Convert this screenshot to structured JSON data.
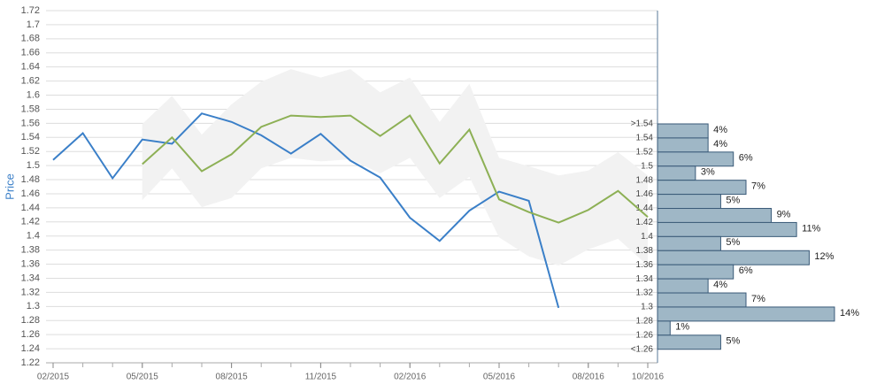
{
  "chart_data": {
    "type": "line",
    "y_label": "Price",
    "ylim": [
      1.22,
      1.72
    ],
    "yticks": [
      1.22,
      1.24,
      1.26,
      1.28,
      1.3,
      1.32,
      1.34,
      1.36,
      1.38,
      1.4,
      1.42,
      1.44,
      1.46,
      1.48,
      1.5,
      1.52,
      1.54,
      1.56,
      1.58,
      1.6,
      1.62,
      1.64,
      1.66,
      1.68,
      1.7,
      1.72
    ],
    "xticks": [
      "02/2015",
      "05/2015",
      "08/2015",
      "11/2015",
      "02/2016",
      "05/2016",
      "08/2016",
      "10/2016"
    ],
    "grid": true,
    "band": {
      "color": "#f2f2f2",
      "x": [
        "05/2015",
        "06/2015",
        "07/2015",
        "08/2015",
        "09/2015",
        "10/2015",
        "11/2015",
        "12/2015",
        "01/2016",
        "02/2016",
        "03/2016",
        "04/2016",
        "05/2016",
        "06/2016",
        "07/2016",
        "08/2016",
        "09/2016",
        "10/2016"
      ],
      "upper": [
        1.559,
        1.599,
        1.544,
        1.587,
        1.619,
        1.637,
        1.625,
        1.637,
        1.604,
        1.625,
        1.562,
        1.616,
        1.511,
        1.499,
        1.486,
        1.493,
        1.519,
        1.486
      ],
      "lower": [
        1.451,
        1.496,
        1.441,
        1.454,
        1.496,
        1.511,
        1.506,
        1.509,
        1.489,
        1.511,
        1.454,
        1.484,
        1.398,
        1.371,
        1.358,
        1.381,
        1.396,
        1.358
      ]
    },
    "series": [
      {
        "color": "#3a7fc8",
        "x": [
          "02/2015",
          "03/2015",
          "04/2015",
          "05/2015",
          "06/2015",
          "07/2015",
          "08/2015",
          "09/2015",
          "10/2015",
          "11/2015",
          "12/2015",
          "01/2016",
          "02/2016",
          "03/2016",
          "04/2016",
          "05/2016",
          "06/2016",
          "07/2016"
        ],
        "values": [
          1.508,
          1.546,
          1.482,
          1.537,
          1.531,
          1.574,
          1.562,
          1.543,
          1.517,
          1.545,
          1.507,
          1.483,
          1.426,
          1.393,
          1.436,
          1.463,
          1.45,
          1.298
        ]
      },
      {
        "color": "#8db055",
        "x": [
          "05/2015",
          "06/2015",
          "07/2015",
          "08/2015",
          "09/2015",
          "10/2015",
          "11/2015",
          "12/2015",
          "01/2016",
          "02/2016",
          "03/2016",
          "04/2016",
          "05/2016",
          "06/2016",
          "07/2016",
          "08/2016",
          "09/2016",
          "10/2016"
        ],
        "values": [
          1.502,
          1.54,
          1.492,
          1.516,
          1.555,
          1.571,
          1.569,
          1.571,
          1.542,
          1.571,
          1.503,
          1.551,
          1.452,
          1.434,
          1.419,
          1.437,
          1.464,
          1.427
        ]
      }
    ],
    "histogram": {
      "type": "bar",
      "color": "#9fb7c6",
      "categories": [
        ">1.54",
        "1.54",
        "1.52",
        "1.5",
        "1.48",
        "1.46",
        "1.44",
        "1.42",
        "1.4",
        "1.38",
        "1.36",
        "1.34",
        "1.32",
        "1.3",
        "1.28",
        "1.26",
        "<1.26"
      ],
      "values": [
        4,
        4,
        6,
        3,
        7,
        5,
        9,
        11,
        5,
        12,
        6,
        4,
        7,
        14,
        1,
        5,
        null
      ],
      "value_labels": [
        "4%",
        "4%",
        "6%",
        "3%",
        "7%",
        "5%",
        "9%",
        "11%",
        "5%",
        "12%",
        "6%",
        "4%",
        "7%",
        "14%",
        "1%",
        "5%",
        null
      ]
    }
  }
}
